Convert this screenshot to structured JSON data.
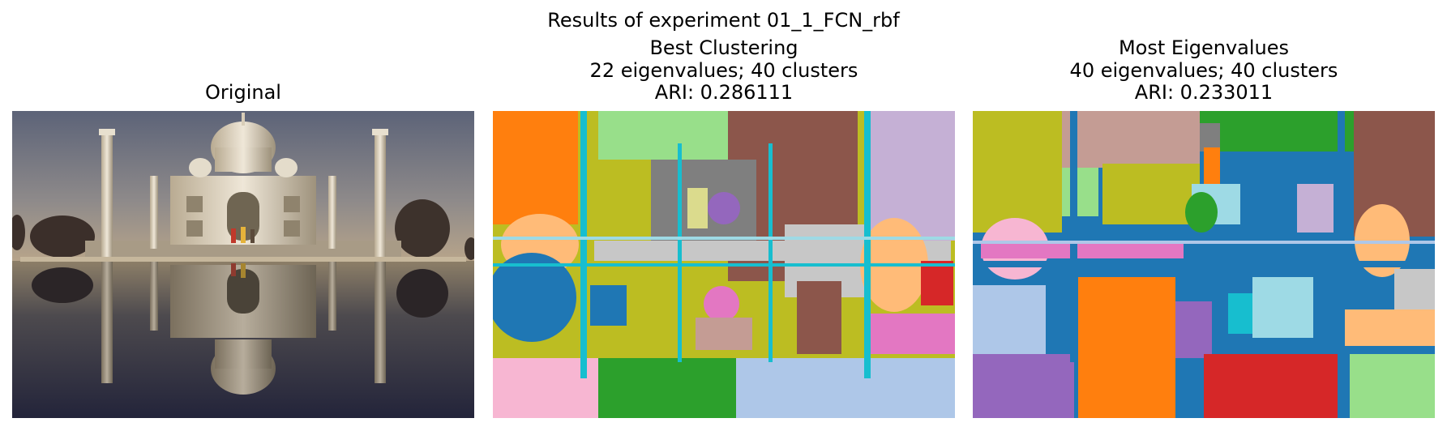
{
  "figure": {
    "suptitle": "Results of experiment 01_1_FCN_rbf"
  },
  "panels": [
    {
      "lines": [
        "Original"
      ]
    },
    {
      "lines": [
        "Best Clustering",
        "22 eigenvalues; 40 clusters",
        "ARI: 0.286111"
      ]
    },
    {
      "lines": [
        "Most Eigenvalues",
        "40 eigenvalues; 40 clusters",
        "ARI: 0.233011"
      ]
    }
  ],
  "palette": {
    "blue": "#1f77b4",
    "orange": "#ff7f0e",
    "green": "#2ca02c",
    "red": "#d62728",
    "purple": "#9467bd",
    "brown": "#8c564b",
    "pink": "#e377c2",
    "gray": "#7f7f7f",
    "olive": "#bcbd22",
    "cyan": "#17becf",
    "light_blue": "#aec7e8",
    "light_orange": "#ffbb78",
    "light_green": "#98df8a",
    "light_purple": "#c5b0d5",
    "light_brown": "#c49c94",
    "light_pink": "#f7b6d2",
    "light_gray": "#c7c7c7",
    "light_cyan": "#9edae5"
  }
}
